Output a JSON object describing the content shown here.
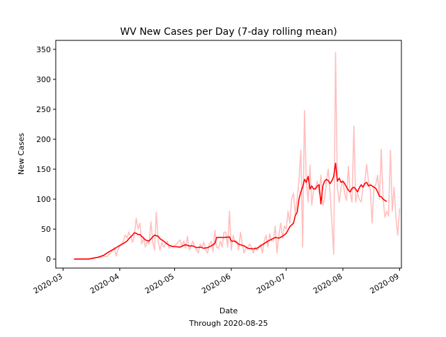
{
  "chart_data": {
    "type": "line",
    "title": "WV New Cases per Day (7-day rolling mean)",
    "xlabel": "Date",
    "xlabel_sub": "Through 2020-08-25",
    "ylabel": "New Cases",
    "xlim": [
      "2020-02-26",
      "2020-09-02"
    ],
    "ylim": [
      -15,
      365
    ],
    "grid": false,
    "x_ticks": [
      "2020-03",
      "2020-04",
      "2020-05",
      "2020-06",
      "2020-07",
      "2020-08",
      "2020-09"
    ],
    "y_ticks": [
      0,
      50,
      100,
      150,
      200,
      250,
      300,
      350
    ],
    "colors": {
      "daily": "#ffbfbf",
      "rolling": "#ff0000"
    },
    "series": [
      {
        "role": "daily",
        "points": [
          [
            "2020-03-07",
            0
          ],
          [
            "2020-03-10",
            0
          ],
          [
            "2020-03-13",
            0
          ],
          [
            "2020-03-16",
            1
          ],
          [
            "2020-03-19",
            3
          ],
          [
            "2020-03-21",
            2
          ],
          [
            "2020-03-23",
            5
          ],
          [
            "2020-03-25",
            4
          ],
          [
            "2020-03-27",
            10
          ],
          [
            "2020-03-29",
            20
          ],
          [
            "2020-03-30",
            5
          ],
          [
            "2020-03-31",
            15
          ],
          [
            "2020-04-01",
            22
          ],
          [
            "2020-04-02",
            25
          ],
          [
            "2020-04-03",
            30
          ],
          [
            "2020-04-04",
            40
          ],
          [
            "2020-04-05",
            35
          ],
          [
            "2020-04-06",
            45
          ],
          [
            "2020-04-07",
            38
          ],
          [
            "2020-04-08",
            28
          ],
          [
            "2020-04-09",
            40
          ],
          [
            "2020-04-10",
            68
          ],
          [
            "2020-04-11",
            50
          ],
          [
            "2020-04-12",
            60
          ],
          [
            "2020-04-13",
            25
          ],
          [
            "2020-04-14",
            35
          ],
          [
            "2020-04-15",
            20
          ],
          [
            "2020-04-16",
            30
          ],
          [
            "2020-04-17",
            25
          ],
          [
            "2020-04-18",
            62
          ],
          [
            "2020-04-19",
            30
          ],
          [
            "2020-04-20",
            15
          ],
          [
            "2020-04-21",
            78
          ],
          [
            "2020-04-22",
            30
          ],
          [
            "2020-04-23",
            15
          ],
          [
            "2020-04-24",
            28
          ],
          [
            "2020-04-25",
            20
          ],
          [
            "2020-04-26",
            25
          ],
          [
            "2020-04-27",
            30
          ],
          [
            "2020-04-28",
            18
          ],
          [
            "2020-04-29",
            22
          ],
          [
            "2020-04-30",
            20
          ],
          [
            "2020-05-02",
            25
          ],
          [
            "2020-05-04",
            32
          ],
          [
            "2020-05-05",
            22
          ],
          [
            "2020-05-06",
            30
          ],
          [
            "2020-05-07",
            18
          ],
          [
            "2020-05-08",
            38
          ],
          [
            "2020-05-09",
            15
          ],
          [
            "2020-05-10",
            22
          ],
          [
            "2020-05-11",
            30
          ],
          [
            "2020-05-12",
            20
          ],
          [
            "2020-05-13",
            15
          ],
          [
            "2020-05-14",
            10
          ],
          [
            "2020-05-15",
            25
          ],
          [
            "2020-05-16",
            20
          ],
          [
            "2020-05-17",
            28
          ],
          [
            "2020-05-18",
            15
          ],
          [
            "2020-05-19",
            10
          ],
          [
            "2020-05-20",
            25
          ],
          [
            "2020-05-21",
            30
          ],
          [
            "2020-05-22",
            12
          ],
          [
            "2020-05-23",
            48
          ],
          [
            "2020-05-24",
            20
          ],
          [
            "2020-05-25",
            18
          ],
          [
            "2020-05-26",
            30
          ],
          [
            "2020-05-27",
            20
          ],
          [
            "2020-05-28",
            45
          ],
          [
            "2020-05-29",
            45
          ],
          [
            "2020-05-30",
            20
          ],
          [
            "2020-05-31",
            80
          ],
          [
            "2020-06-01",
            15
          ],
          [
            "2020-06-02",
            40
          ],
          [
            "2020-06-03",
            28
          ],
          [
            "2020-06-04",
            30
          ],
          [
            "2020-06-05",
            15
          ],
          [
            "2020-06-06",
            45
          ],
          [
            "2020-06-07",
            25
          ],
          [
            "2020-06-08",
            10
          ],
          [
            "2020-06-09",
            18
          ],
          [
            "2020-06-10",
            20
          ],
          [
            "2020-06-11",
            25
          ],
          [
            "2020-06-12",
            20
          ],
          [
            "2020-06-13",
            10
          ],
          [
            "2020-06-14",
            20
          ],
          [
            "2020-06-15",
            15
          ],
          [
            "2020-06-16",
            18
          ],
          [
            "2020-06-17",
            25
          ],
          [
            "2020-06-18",
            10
          ],
          [
            "2020-06-19",
            30
          ],
          [
            "2020-06-20",
            40
          ],
          [
            "2020-06-21",
            20
          ],
          [
            "2020-06-22",
            42
          ],
          [
            "2020-06-23",
            30
          ],
          [
            "2020-06-24",
            30
          ],
          [
            "2020-06-25",
            55
          ],
          [
            "2020-06-26",
            10
          ],
          [
            "2020-06-27",
            40
          ],
          [
            "2020-06-28",
            60
          ],
          [
            "2020-06-29",
            35
          ],
          [
            "2020-06-30",
            55
          ],
          [
            "2020-07-01",
            50
          ],
          [
            "2020-07-02",
            80
          ],
          [
            "2020-07-03",
            60
          ],
          [
            "2020-07-04",
            100
          ],
          [
            "2020-07-05",
            110
          ],
          [
            "2020-07-06",
            75
          ],
          [
            "2020-07-07",
            100
          ],
          [
            "2020-07-08",
            130
          ],
          [
            "2020-07-09",
            182
          ],
          [
            "2020-07-10",
            20
          ],
          [
            "2020-07-11",
            248
          ],
          [
            "2020-07-12",
            130
          ],
          [
            "2020-07-13",
            95
          ],
          [
            "2020-07-14",
            157
          ],
          [
            "2020-07-15",
            90
          ],
          [
            "2020-07-16",
            115
          ],
          [
            "2020-07-17",
            120
          ],
          [
            "2020-07-18",
            130
          ],
          [
            "2020-07-19",
            110
          ],
          [
            "2020-07-20",
            140
          ],
          [
            "2020-07-21",
            90
          ],
          [
            "2020-07-22",
            100
          ],
          [
            "2020-07-23",
            130
          ],
          [
            "2020-07-24",
            150
          ],
          [
            "2020-07-25",
            110
          ],
          [
            "2020-07-26",
            60
          ],
          [
            "2020-07-27",
            8
          ],
          [
            "2020-07-28",
            345
          ],
          [
            "2020-07-29",
            120
          ],
          [
            "2020-07-30",
            95
          ],
          [
            "2020-07-31",
            120
          ],
          [
            "2020-08-01",
            130
          ],
          [
            "2020-08-02",
            110
          ],
          [
            "2020-08-03",
            98
          ],
          [
            "2020-08-04",
            155
          ],
          [
            "2020-08-05",
            110
          ],
          [
            "2020-08-06",
            95
          ],
          [
            "2020-08-07",
            222
          ],
          [
            "2020-08-08",
            95
          ],
          [
            "2020-08-09",
            110
          ],
          [
            "2020-08-10",
            100
          ],
          [
            "2020-08-11",
            95
          ],
          [
            "2020-08-12",
            120
          ],
          [
            "2020-08-13",
            130
          ],
          [
            "2020-08-14",
            158
          ],
          [
            "2020-08-15",
            130
          ],
          [
            "2020-08-16",
            115
          ],
          [
            "2020-08-17",
            60
          ],
          [
            "2020-08-18",
            120
          ],
          [
            "2020-08-19",
            125
          ],
          [
            "2020-08-20",
            140
          ],
          [
            "2020-08-21",
            100
          ],
          [
            "2020-08-22",
            183
          ],
          [
            "2020-08-23",
            100
          ],
          [
            "2020-08-24",
            70
          ],
          [
            "2020-08-25",
            80
          ],
          [
            "2020-08-26",
            72
          ],
          [
            "2020-08-27",
            182
          ],
          [
            "2020-08-28",
            80
          ],
          [
            "2020-08-29",
            120
          ],
          [
            "2020-08-30",
            70
          ],
          [
            "2020-08-31",
            40
          ],
          [
            "2020-09-01",
            85
          ]
        ]
      },
      {
        "role": "rolling",
        "points": [
          [
            "2020-03-07",
            0
          ],
          [
            "2020-03-15",
            0
          ],
          [
            "2020-03-17",
            1
          ],
          [
            "2020-03-20",
            3
          ],
          [
            "2020-03-23",
            6
          ],
          [
            "2020-03-26",
            12
          ],
          [
            "2020-03-29",
            17
          ],
          [
            "2020-03-31",
            21
          ],
          [
            "2020-04-03",
            26
          ],
          [
            "2020-04-05",
            30
          ],
          [
            "2020-04-06",
            34
          ],
          [
            "2020-04-08",
            40
          ],
          [
            "2020-04-09",
            44
          ],
          [
            "2020-04-10",
            43
          ],
          [
            "2020-04-11",
            41
          ],
          [
            "2020-04-12",
            41
          ],
          [
            "2020-04-14",
            35
          ],
          [
            "2020-04-15",
            32
          ],
          [
            "2020-04-17",
            30
          ],
          [
            "2020-04-19",
            37
          ],
          [
            "2020-04-20",
            40
          ],
          [
            "2020-04-21",
            39
          ],
          [
            "2020-04-22",
            38
          ],
          [
            "2020-04-23",
            34
          ],
          [
            "2020-04-25",
            30
          ],
          [
            "2020-04-27",
            25
          ],
          [
            "2020-04-28",
            23
          ],
          [
            "2020-04-30",
            21
          ],
          [
            "2020-05-04",
            20
          ],
          [
            "2020-05-07",
            24
          ],
          [
            "2020-05-09",
            22
          ],
          [
            "2020-05-11",
            22
          ],
          [
            "2020-05-13",
            19
          ],
          [
            "2020-05-15",
            20
          ],
          [
            "2020-05-17",
            18
          ],
          [
            "2020-05-19",
            19
          ],
          [
            "2020-05-21",
            22
          ],
          [
            "2020-05-23",
            26
          ],
          [
            "2020-05-24",
            36
          ],
          [
            "2020-05-28",
            36
          ],
          [
            "2020-05-31",
            37
          ],
          [
            "2020-06-01",
            30
          ],
          [
            "2020-06-03",
            30
          ],
          [
            "2020-06-05",
            25
          ],
          [
            "2020-06-08",
            22
          ],
          [
            "2020-06-10",
            18
          ],
          [
            "2020-06-13",
            17
          ],
          [
            "2020-06-15",
            18
          ],
          [
            "2020-06-17",
            22
          ],
          [
            "2020-06-19",
            26
          ],
          [
            "2020-06-21",
            30
          ],
          [
            "2020-06-23",
            33
          ],
          [
            "2020-06-25",
            36
          ],
          [
            "2020-06-27",
            35
          ],
          [
            "2020-06-29",
            38
          ],
          [
            "2020-07-01",
            43
          ],
          [
            "2020-07-03",
            54
          ],
          [
            "2020-07-05",
            60
          ],
          [
            "2020-07-06",
            73
          ],
          [
            "2020-07-07",
            78
          ],
          [
            "2020-07-08",
            100
          ],
          [
            "2020-07-09",
            112
          ],
          [
            "2020-07-10",
            120
          ],
          [
            "2020-07-11",
            133
          ],
          [
            "2020-07-12",
            128
          ],
          [
            "2020-07-13",
            138
          ],
          [
            "2020-07-14",
            117
          ],
          [
            "2020-07-15",
            122
          ],
          [
            "2020-07-16",
            117
          ],
          [
            "2020-07-17",
            117
          ],
          [
            "2020-07-18",
            122
          ],
          [
            "2020-07-19",
            124
          ],
          [
            "2020-07-20",
            92
          ],
          [
            "2020-07-21",
            122
          ],
          [
            "2020-07-22",
            130
          ],
          [
            "2020-07-23",
            133
          ],
          [
            "2020-07-24",
            131
          ],
          [
            "2020-07-25",
            126
          ],
          [
            "2020-07-26",
            131
          ],
          [
            "2020-07-27",
            138
          ],
          [
            "2020-07-28",
            160
          ],
          [
            "2020-07-29",
            130
          ],
          [
            "2020-07-30",
            135
          ],
          [
            "2020-07-31",
            128
          ],
          [
            "2020-08-01",
            130
          ],
          [
            "2020-08-02",
            126
          ],
          [
            "2020-08-03",
            120
          ],
          [
            "2020-08-04",
            115
          ],
          [
            "2020-08-05",
            112
          ],
          [
            "2020-08-06",
            118
          ],
          [
            "2020-08-07",
            120
          ],
          [
            "2020-08-08",
            117
          ],
          [
            "2020-08-09",
            112
          ],
          [
            "2020-08-10",
            119
          ],
          [
            "2020-08-11",
            124
          ],
          [
            "2020-08-12",
            120
          ],
          [
            "2020-08-13",
            126
          ],
          [
            "2020-08-14",
            128
          ],
          [
            "2020-08-15",
            122
          ],
          [
            "2020-08-16",
            124
          ],
          [
            "2020-08-17",
            122
          ],
          [
            "2020-08-18",
            120
          ],
          [
            "2020-08-19",
            118
          ],
          [
            "2020-08-20",
            112
          ],
          [
            "2020-08-21",
            105
          ],
          [
            "2020-08-22",
            104
          ],
          [
            "2020-08-23",
            100
          ],
          [
            "2020-08-24",
            98
          ],
          [
            "2020-08-25",
            96
          ]
        ]
      }
    ]
  }
}
